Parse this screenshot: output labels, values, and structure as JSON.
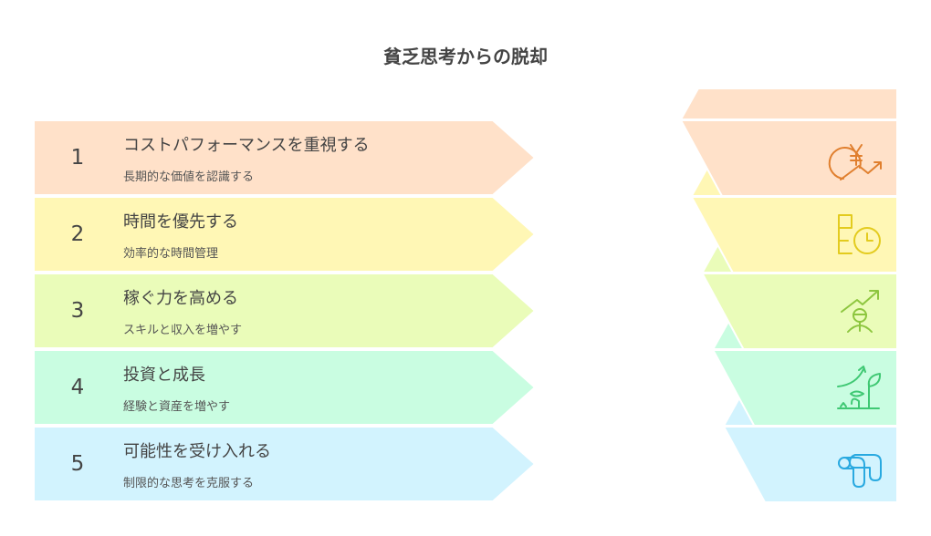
{
  "title": "貧乏思考からの脱却",
  "steps": [
    {
      "number": "1",
      "title": "コストパフォーマンスを重視する",
      "subtitle": "長期的な価値を認識する",
      "icon": "yen-growth-icon",
      "color": "#FFE1C9",
      "icon_color": "#E07F2E"
    },
    {
      "number": "2",
      "title": "時間を優先する",
      "subtitle": "効率的な時間管理",
      "icon": "schedule-clock-icon",
      "color": "#FFF7B5",
      "icon_color": "#E3CB1E"
    },
    {
      "number": "3",
      "title": "稼ぐ力を高める",
      "subtitle": "スキルと収入を増やす",
      "icon": "person-growth-icon",
      "color": "#EAFCB9",
      "icon_color": "#8DC63F"
    },
    {
      "number": "4",
      "title": "投資と成長",
      "subtitle": "経験と資産を増やす",
      "icon": "plant-growth-icon",
      "color": "#C9FDE1",
      "icon_color": "#3FC873"
    },
    {
      "number": "5",
      "title": "可能性を受け入れる",
      "subtitle": "制限的な思考を克服する",
      "icon": "flexible-pipe-icon",
      "color": "#D2F3FE",
      "icon_color": "#29A9E0"
    }
  ]
}
